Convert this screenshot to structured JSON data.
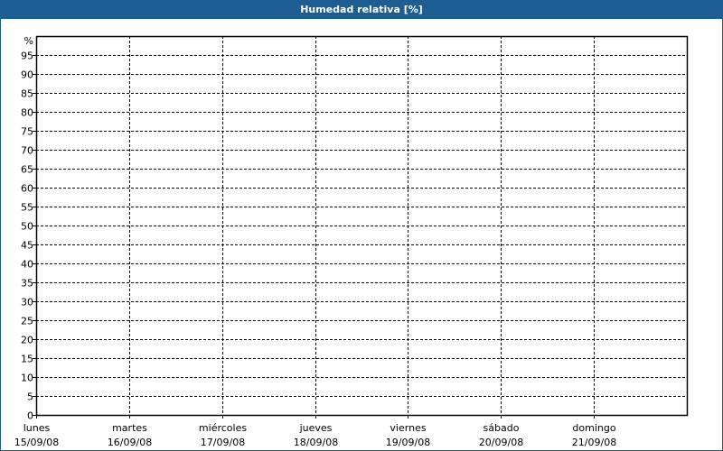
{
  "chart_data": {
    "type": "line",
    "title": "Humedad relativa [%]",
    "ylabel": "%",
    "ylim": [
      0,
      100
    ],
    "yticks": [
      "0",
      "5",
      "10",
      "15",
      "20",
      "25",
      "30",
      "35",
      "40",
      "45",
      "50",
      "55",
      "60",
      "65",
      "70",
      "75",
      "80",
      "85",
      "90",
      "95"
    ],
    "categories": [
      {
        "day": "lunes",
        "date": "15/09/08"
      },
      {
        "day": "martes",
        "date": "16/09/08"
      },
      {
        "day": "miércoles",
        "date": "17/09/08"
      },
      {
        "day": "jueves",
        "date": "18/09/08"
      },
      {
        "day": "viernes",
        "date": "19/09/08"
      },
      {
        "day": "sábado",
        "date": "20/09/08"
      },
      {
        "day": "domingo",
        "date": "21/09/08"
      }
    ],
    "grid": true,
    "series": [],
    "colors": {
      "titlebar": "#1d5d92",
      "grid": "#000000"
    }
  }
}
